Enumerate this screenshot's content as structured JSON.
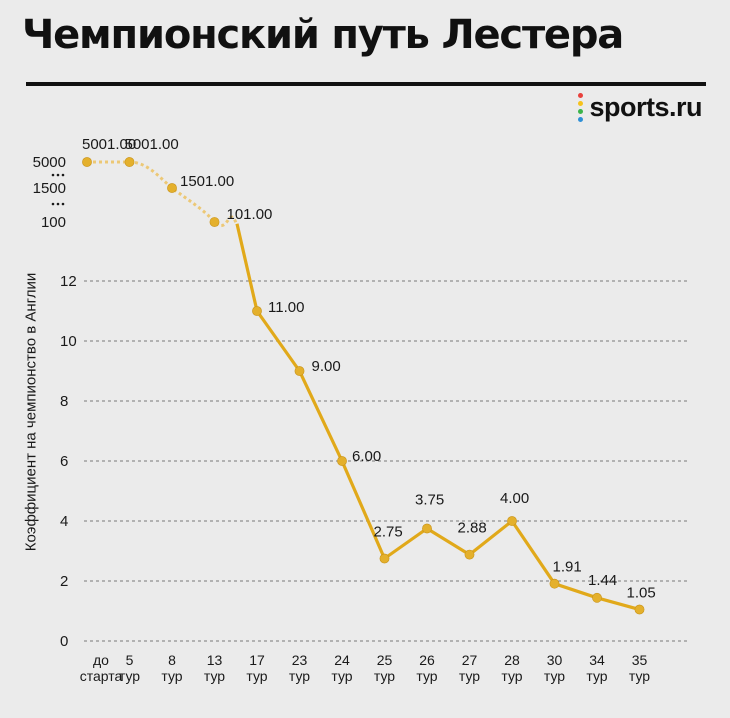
{
  "title": "Чемпионский путь Лестера",
  "brand": {
    "name": "sports.ru",
    "dot_colors": [
      "#e8413c",
      "#f6c21c",
      "#3cb44a",
      "#2d8fd6"
    ]
  },
  "colors": {
    "line": "#e1a91a",
    "line_faded": "#ecc876",
    "marker": "#e4b02c",
    "grid": "#7a7a7a",
    "text": "#1a1a1a"
  },
  "chart_data": {
    "type": "line",
    "ylabel": "Коэффициент на чемпионство в Англии",
    "categories": [
      [
        "до",
        "старта"
      ],
      [
        "5",
        "тур"
      ],
      [
        "8",
        "тур"
      ],
      [
        "13",
        "тур"
      ],
      [
        "17",
        "тур"
      ],
      [
        "23",
        "тур"
      ],
      [
        "24",
        "тур"
      ],
      [
        "25",
        "тур"
      ],
      [
        "26",
        "тур"
      ],
      [
        "27",
        "тур"
      ],
      [
        "28",
        "тур"
      ],
      [
        "30",
        "тур"
      ],
      [
        "34",
        "тур"
      ],
      [
        "35",
        "тур"
      ]
    ],
    "values": [
      5001,
      5001,
      1501,
      101,
      11,
      9,
      6,
      2.75,
      3.75,
      2.88,
      4,
      1.91,
      1.44,
      1.05
    ],
    "labels": [
      "5001.00",
      "5001.00",
      "1501.00",
      "101.00",
      "11.00",
      "9.00",
      "6.00",
      "2.75",
      "3.75",
      "2.88",
      "4.00",
      "1.91",
      "1.44",
      "1.05"
    ],
    "yticks_linear": [
      "0",
      "2",
      "4",
      "6",
      "8",
      "10",
      "12"
    ],
    "yticks_broken": [
      "100",
      "1500",
      "5000"
    ],
    "ylim_linear": [
      0,
      12
    ],
    "axis_break": true,
    "grid": "horizontal"
  }
}
